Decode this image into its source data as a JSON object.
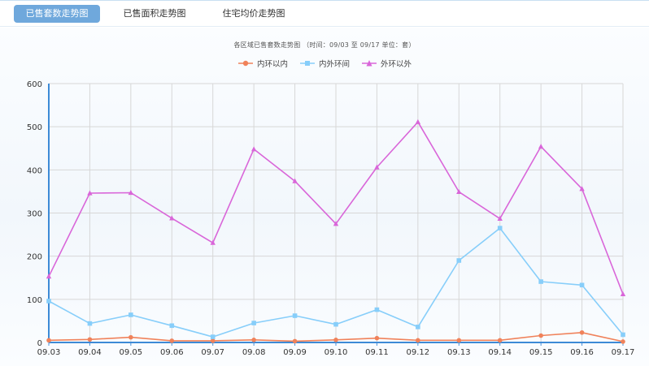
{
  "tabs": [
    {
      "label": "已售套数走势图",
      "active": true
    },
    {
      "label": "已售面积走势图",
      "active": false
    },
    {
      "label": "住宅均价走势图",
      "active": false
    }
  ],
  "chart_data": {
    "type": "line",
    "title": "各区域已售套数走势图  （时间：09/03 至 09/17   单位：套）",
    "categories": [
      "09.03",
      "09.04",
      "09.05",
      "09.06",
      "09.07",
      "09.08",
      "09.09",
      "09.10",
      "09.11",
      "09.12",
      "09.13",
      "09.14",
      "09.15",
      "09.16",
      "09.17"
    ],
    "ylim": [
      0,
      600
    ],
    "yticks": [
      0,
      100,
      200,
      300,
      400,
      500,
      600
    ],
    "grid": true,
    "legend_position": "top-center",
    "series": [
      {
        "name": "内环以内",
        "color": "#f0825a",
        "marker": "circle",
        "values": [
          5,
          7,
          12,
          4,
          4,
          6,
          3,
          6,
          10,
          5,
          5,
          5,
          16,
          23,
          2
        ]
      },
      {
        "name": "内外环间",
        "color": "#87cefa",
        "marker": "square",
        "values": [
          96,
          44,
          64,
          39,
          13,
          45,
          62,
          42,
          76,
          36,
          190,
          265,
          141,
          133,
          18
        ]
      },
      {
        "name": "外环以外",
        "color": "#d966d9",
        "marker": "triangle",
        "values": [
          153,
          346,
          347,
          288,
          231,
          448,
          374,
          275,
          406,
          511,
          349,
          287,
          454,
          356,
          112
        ]
      }
    ]
  }
}
